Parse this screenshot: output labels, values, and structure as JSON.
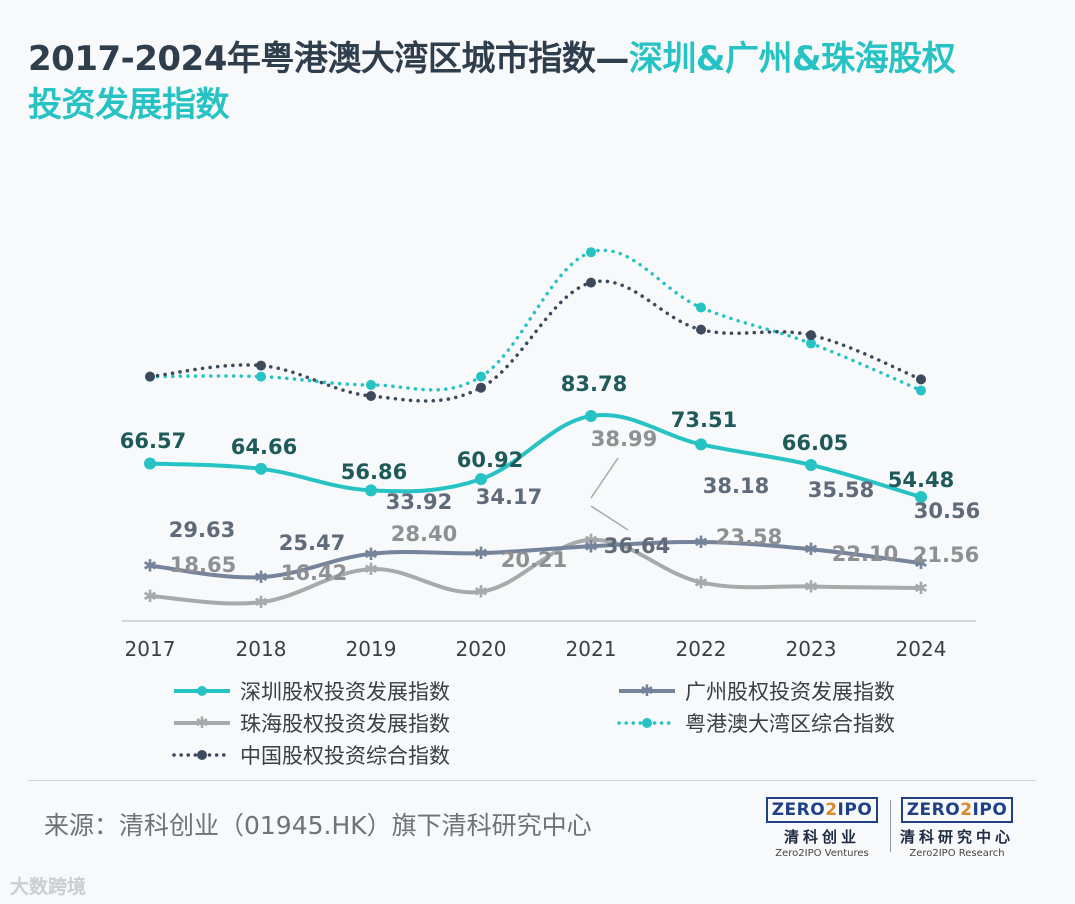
{
  "title": {
    "main": "2017-2024年粤港澳大湾区城市指数—",
    "accent_line1": "深圳&广州&珠海股权",
    "accent_line2": "投资发展指数"
  },
  "chart_data": {
    "type": "line",
    "categories": [
      "2017",
      "2018",
      "2019",
      "2020",
      "2021",
      "2022",
      "2023",
      "2024"
    ],
    "series": [
      {
        "name": "深圳股权投资发展指数",
        "color": "#27c3c4",
        "style": "solid",
        "marker": "circle",
        "values": [
          66.57,
          64.66,
          56.86,
          60.92,
          83.78,
          73.51,
          66.05,
          54.48
        ],
        "labels": [
          "66.57",
          "64.66",
          "56.86",
          "60.92",
          "83.78",
          "73.51",
          "66.05",
          "54.48"
        ]
      },
      {
        "name": "广州股权投资发展指数",
        "color": "#75849a",
        "style": "solid",
        "marker": "star",
        "values": [
          29.63,
          25.47,
          33.92,
          34.17,
          36.64,
          38.18,
          35.58,
          30.56
        ],
        "labels": [
          "29.63",
          "25.47",
          "33.92",
          "34.17",
          "36.64",
          "38.18",
          "35.58",
          "30.56"
        ]
      },
      {
        "name": "珠海股权投资发展指数",
        "color": "#a7a9ab",
        "style": "solid",
        "marker": "star",
        "values": [
          18.65,
          16.42,
          28.4,
          20.21,
          38.99,
          23.58,
          22.1,
          21.56
        ],
        "labels": [
          "18.65",
          "16.42",
          "28.40",
          "20.21",
          "38.99",
          "23.58",
          "22.10",
          "21.56"
        ]
      },
      {
        "name": "粤港澳大湾区综合指数",
        "color": "#27c3c4",
        "style": "dotted",
        "marker": "circle",
        "values": [
          98,
          98,
          95,
          98,
          143,
          123,
          110,
          93
        ],
        "labels": []
      },
      {
        "name": "中国股权投资综合指数",
        "color": "#3c4a5c",
        "style": "dotted",
        "marker": "circle",
        "values": [
          98,
          102,
          91,
          94,
          132,
          115,
          113,
          97
        ],
        "labels": []
      }
    ],
    "legend_position": "bottom",
    "grid": false
  },
  "source": "来源：清科创业（01945.HK）旗下清科研究中心",
  "logos": [
    {
      "mark_a": "ZERO",
      "mark_b": "2",
      "mark_c": "IPO",
      "cn": "清科创业",
      "en": "Zero2IPO Ventures"
    },
    {
      "mark_a": "ZERO",
      "mark_b": "2",
      "mark_c": "IPO",
      "cn": "清科研究中心",
      "en": "Zero2IPO Research"
    }
  ],
  "watermark": "大数跨境"
}
